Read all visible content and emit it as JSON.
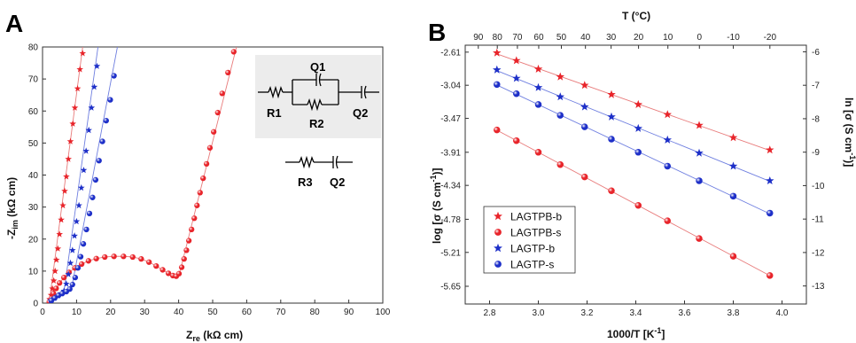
{
  "panels": {
    "left": "A",
    "right": "B"
  },
  "circuit": {
    "r1": "R1",
    "q1": "Q1",
    "r2": "R2",
    "q2": "Q2",
    "r3": "R3",
    "q2b": "Q2"
  },
  "colors": {
    "red": "#e8242a",
    "blue": "#1d2fc8",
    "fit_red": "#e87b7b",
    "fit_blue": "#6f7fe0",
    "inset_bg": "#ececec"
  },
  "chart_data": [
    {
      "type": "scatter",
      "xlabel_main": "Z",
      "xlabel_sub": "re",
      "xlabel_unit": " (kΩ cm)",
      "ylabel_prefix": "-Z",
      "ylabel_sub": "im",
      "ylabel_unit": " (kΩ cm)",
      "xlim": [
        0,
        100
      ],
      "ylim": [
        0,
        80
      ],
      "xticks": [
        "0",
        "10",
        "20",
        "30",
        "40",
        "50",
        "60",
        "70",
        "80",
        "90",
        "100"
      ],
      "yticks": [
        "0",
        "10",
        "20",
        "30",
        "40",
        "50",
        "60",
        "70",
        "80"
      ],
      "series": [
        {
          "color": "red",
          "marker": "star",
          "points": [
            [
              2.1,
              1.2
            ],
            [
              2.5,
              2.5
            ],
            [
              2.9,
              4.5
            ],
            [
              3.3,
              7.0
            ],
            [
              3.7,
              10
            ],
            [
              4.1,
              13.5
            ],
            [
              4.5,
              17
            ],
            [
              5.0,
              21.5
            ],
            [
              5.5,
              26
            ],
            [
              6.0,
              30.5
            ],
            [
              6.5,
              35
            ],
            [
              7.0,
              39.5
            ],
            [
              7.6,
              45
            ],
            [
              8.2,
              50.5
            ],
            [
              8.9,
              56
            ],
            [
              9.5,
              61
            ],
            [
              10.3,
              67
            ],
            [
              11.0,
              73
            ],
            [
              11.8,
              78
            ]
          ]
        },
        {
          "color": "red",
          "marker": "circle",
          "points": [
            [
              2.0,
              0.4
            ],
            [
              2.6,
              1.5
            ],
            [
              3.2,
              3.0
            ],
            [
              4.0,
              4.6
            ],
            [
              5.0,
              6.3
            ],
            [
              6.3,
              8.0
            ],
            [
              7.8,
              9.6
            ],
            [
              9.5,
              11.0
            ],
            [
              11.5,
              12.2
            ],
            [
              13.5,
              13.2
            ],
            [
              15.8,
              13.9
            ],
            [
              18.3,
              14.4
            ],
            [
              21.0,
              14.6
            ],
            [
              23.8,
              14.6
            ],
            [
              26.5,
              14.4
            ],
            [
              29.0,
              13.8
            ],
            [
              31.3,
              12.8
            ],
            [
              33.4,
              11.6
            ],
            [
              35.3,
              10.4
            ],
            [
              37.0,
              9.3
            ],
            [
              38.3,
              8.6
            ],
            [
              39.3,
              8.4
            ],
            [
              40.1,
              9.2
            ],
            [
              40.9,
              11.2
            ],
            [
              41.6,
              13.8
            ],
            [
              42.3,
              16.5
            ],
            [
              43.0,
              19.5
            ],
            [
              43.8,
              23
            ],
            [
              44.6,
              26.5
            ],
            [
              45.4,
              30.5
            ],
            [
              46.3,
              34.5
            ],
            [
              47.2,
              39
            ],
            [
              48.2,
              43.5
            ],
            [
              49.2,
              48.5
            ],
            [
              50.3,
              53.5
            ],
            [
              51.5,
              59.5
            ],
            [
              52.8,
              65.5
            ],
            [
              54.5,
              72
            ],
            [
              56.2,
              78.5
            ]
          ]
        },
        {
          "color": "blue",
          "marker": "star",
          "points": [
            [
              2.4,
              0.8
            ],
            [
              3.5,
              1.6
            ],
            [
              4.6,
              2.4
            ],
            [
              5.6,
              3.0
            ],
            [
              6.3,
              3.8
            ],
            [
              7.0,
              6
            ],
            [
              7.6,
              9
            ],
            [
              8.2,
              12.5
            ],
            [
              8.8,
              16.5
            ],
            [
              9.4,
              21
            ],
            [
              10.0,
              25.5
            ],
            [
              10.7,
              30.5
            ],
            [
              11.4,
              36
            ],
            [
              12.1,
              41.5
            ],
            [
              12.8,
              47.5
            ],
            [
              13.6,
              54
            ],
            [
              14.4,
              61
            ],
            [
              15.2,
              67.5
            ],
            [
              16.0,
              74
            ]
          ]
        },
        {
          "color": "blue",
          "marker": "circle",
          "points": [
            [
              2.6,
              0.8
            ],
            [
              3.6,
              1.6
            ],
            [
              4.7,
              2.4
            ],
            [
              5.8,
              3.0
            ],
            [
              7.0,
              3.6
            ],
            [
              8.0,
              4.4
            ],
            [
              8.8,
              5.8
            ],
            [
              9.6,
              8.0
            ],
            [
              10.4,
              11
            ],
            [
              11.2,
              14.5
            ],
            [
              12.0,
              18.5
            ],
            [
              12.9,
              23
            ],
            [
              13.8,
              28
            ],
            [
              14.7,
              33
            ],
            [
              15.6,
              38.5
            ],
            [
              16.6,
              44.5
            ],
            [
              17.6,
              50.5
            ],
            [
              18.7,
              57
            ],
            [
              19.9,
              63.5
            ],
            [
              21.0,
              71
            ]
          ]
        }
      ],
      "fits": [
        {
          "color": "fit_red",
          "points": [
            [
              2.0,
              0.5
            ],
            [
              11.8,
              80
            ]
          ]
        },
        {
          "color": "fit_blue",
          "points": [
            [
              6.3,
              3.6
            ],
            [
              16.3,
              80
            ]
          ]
        },
        {
          "color": "fit_blue",
          "points": [
            [
              8.5,
              4.5
            ],
            [
              22.0,
              80
            ]
          ]
        },
        {
          "color": "fit_red",
          "points": [
            [
              39.3,
              8.4
            ],
            [
              40.3,
              9.5
            ],
            [
              57.0,
              80
            ]
          ]
        }
      ]
    },
    {
      "type": "scatter",
      "xlabel": "1000/T [K",
      "xlabel_sup": "-1",
      "xlabel_end": "]",
      "top_xlabel": "T (°C)",
      "ylabel_left": "log [σ (S cm",
      "ylabel_right": "ln [σ (S cm",
      "ylabel_sup": "-1",
      "ylabel_end": ")]",
      "xlim": [
        2.7,
        4.1
      ],
      "ylim_log": [
        -5.88,
        -2.52
      ],
      "xticks": [
        "2.8",
        "3.0",
        "3.2",
        "3.4",
        "3.6",
        "3.8",
        "4.0"
      ],
      "yticks_left": [
        "-2.61",
        "-3.04",
        "-3.47",
        "-3.91",
        "-4.34",
        "-4.78",
        "-5.21",
        "-5.65"
      ],
      "yticks_right": [
        "-6",
        "-7",
        "-8",
        "-9",
        "-10",
        "-11",
        "-12",
        "-13"
      ],
      "top_ticks": [
        "90",
        "80",
        "70",
        "60",
        "50",
        "40",
        "30",
        "20",
        "10",
        "0",
        "-10",
        "-20"
      ],
      "series": [
        {
          "name": "LAGTPB-b",
          "color": "red",
          "marker": "star",
          "x": [
            2.83,
            2.91,
            3.0,
            3.09,
            3.19,
            3.3,
            3.41,
            3.53,
            3.66,
            3.8,
            3.95
          ],
          "y": [
            -2.62,
            -2.72,
            -2.83,
            -2.93,
            -3.04,
            -3.16,
            -3.29,
            -3.42,
            -3.56,
            -3.72,
            -3.88
          ]
        },
        {
          "name": "LAGTPB-s",
          "color": "red",
          "marker": "circle",
          "x": [
            2.83,
            2.91,
            3.0,
            3.09,
            3.19,
            3.3,
            3.41,
            3.53,
            3.66,
            3.8,
            3.95
          ],
          "y": [
            -3.62,
            -3.76,
            -3.91,
            -4.07,
            -4.23,
            -4.41,
            -4.6,
            -4.8,
            -5.03,
            -5.26,
            -5.51
          ]
        },
        {
          "name": "LAGTP-b",
          "color": "blue",
          "marker": "star",
          "x": [
            2.83,
            2.91,
            3.0,
            3.09,
            3.19,
            3.3,
            3.41,
            3.53,
            3.66,
            3.8,
            3.95
          ],
          "y": [
            -2.84,
            -2.95,
            -3.07,
            -3.19,
            -3.32,
            -3.45,
            -3.6,
            -3.75,
            -3.92,
            -4.09,
            -4.28
          ]
        },
        {
          "name": "LAGTP-s",
          "color": "blue",
          "marker": "circle",
          "x": [
            2.83,
            2.91,
            3.0,
            3.09,
            3.19,
            3.3,
            3.41,
            3.53,
            3.66,
            3.8,
            3.95
          ],
          "y": [
            -3.03,
            -3.15,
            -3.29,
            -3.43,
            -3.58,
            -3.74,
            -3.91,
            -4.09,
            -4.28,
            -4.48,
            -4.7
          ]
        }
      ],
      "legend_location": "lower-left"
    }
  ]
}
